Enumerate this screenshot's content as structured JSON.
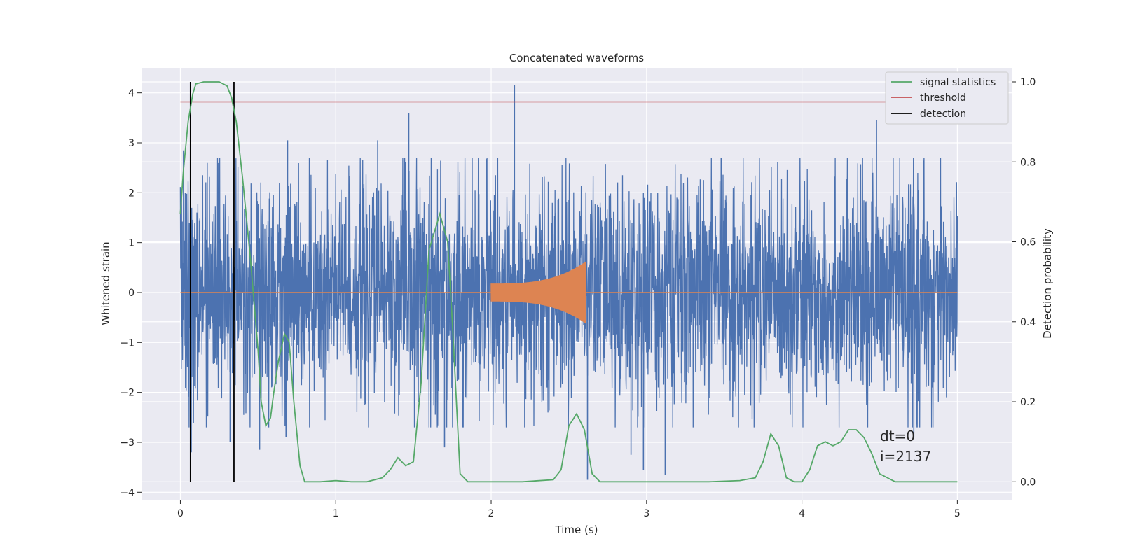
{
  "chart_data": {
    "type": "line",
    "title": "Concatenated waveforms",
    "xlabel": "Time (s)",
    "ylabel": "Whitened strain",
    "ylabel_right": "Detection probability",
    "xlim": [
      -0.25,
      5.35
    ],
    "ylim": [
      -4.15,
      4.5
    ],
    "ylim_right": [
      -0.045,
      1.035
    ],
    "xticks": [
      0,
      1,
      2,
      3,
      4,
      5
    ],
    "yticks": [
      -4,
      -3,
      -2,
      -1,
      0,
      1,
      2,
      3,
      4
    ],
    "yticks_right": [
      0.0,
      0.2,
      0.4,
      0.6,
      0.8,
      1.0
    ],
    "xtick_labels": [
      "0",
      "1",
      "2",
      "3",
      "4",
      "5"
    ],
    "ytick_labels": [
      "−4",
      "−3",
      "−2",
      "−1",
      "0",
      "1",
      "2",
      "3",
      "4"
    ],
    "ytick_right_labels": [
      "0.0",
      "0.2",
      "0.4",
      "0.6",
      "0.8",
      "1.0"
    ],
    "grid": true,
    "legend_position": "top-right",
    "legend": [
      {
        "label": "signal statistics",
        "color": "#55a868"
      },
      {
        "label": "threshold",
        "color": "#c44e52"
      },
      {
        "label": "detection",
        "color": "#000000"
      }
    ],
    "series": [
      {
        "role": "whitened strain noise",
        "color": "#4c72b0",
        "x_range": [
          0,
          5
        ],
        "typical_envelope": [
          -1.9,
          1.9
        ],
        "peaks": [
          {
            "x": 0.02,
            "y": 2.85
          },
          {
            "x": 0.07,
            "y": -3.2
          },
          {
            "x": 0.32,
            "y": -3.0
          },
          {
            "x": 0.51,
            "y": -3.15
          },
          {
            "x": 0.68,
            "y": -2.9
          },
          {
            "x": 0.69,
            "y": 3.05
          },
          {
            "x": 1.27,
            "y": 3.05
          },
          {
            "x": 1.47,
            "y": 3.6
          },
          {
            "x": 1.7,
            "y": -3.1
          },
          {
            "x": 2.15,
            "y": 4.15
          },
          {
            "x": 2.62,
            "y": -3.75
          },
          {
            "x": 2.9,
            "y": -3.25
          },
          {
            "x": 2.98,
            "y": -3.55
          },
          {
            "x": 3.12,
            "y": -3.65
          },
          {
            "x": 4.48,
            "y": 3.45
          },
          {
            "x": 4.72,
            "y": -2.9
          }
        ]
      },
      {
        "role": "injected waveform",
        "color": "#dd8452",
        "chirp_start": 2.0,
        "chirp_end": 2.61,
        "amplitude_start": 0.18,
        "amplitude_end": 0.62
      },
      {
        "name": "signal statistics",
        "axis": "right",
        "color": "#55a868",
        "x": [
          0.0,
          0.02,
          0.05,
          0.08,
          0.1,
          0.15,
          0.2,
          0.25,
          0.3,
          0.33,
          0.36,
          0.4,
          0.45,
          0.5,
          0.52,
          0.55,
          0.58,
          0.6,
          0.63,
          0.67,
          0.7,
          0.73,
          0.77,
          0.8,
          0.85,
          0.9,
          1.0,
          1.1,
          1.2,
          1.3,
          1.35,
          1.4,
          1.45,
          1.5,
          1.55,
          1.6,
          1.67,
          1.72,
          1.75,
          1.8,
          1.85,
          1.9,
          2.0,
          2.2,
          2.4,
          2.45,
          2.5,
          2.55,
          2.6,
          2.65,
          2.7,
          2.8,
          3.0,
          3.2,
          3.4,
          3.6,
          3.7,
          3.75,
          3.8,
          3.85,
          3.9,
          3.95,
          4.0,
          4.05,
          4.1,
          4.15,
          4.2,
          4.25,
          4.3,
          4.35,
          4.4,
          4.45,
          4.5,
          4.6,
          4.8,
          5.0
        ],
        "y": [
          0.67,
          0.78,
          0.9,
          0.97,
          0.995,
          1.0,
          1.0,
          1.0,
          0.99,
          0.96,
          0.9,
          0.76,
          0.56,
          0.33,
          0.2,
          0.14,
          0.16,
          0.22,
          0.3,
          0.37,
          0.35,
          0.2,
          0.04,
          0.0,
          0.0,
          0.0,
          0.003,
          0.0,
          0.0,
          0.01,
          0.03,
          0.06,
          0.04,
          0.05,
          0.25,
          0.58,
          0.67,
          0.6,
          0.4,
          0.02,
          0.0,
          0.0,
          0.0,
          0.0,
          0.005,
          0.03,
          0.14,
          0.17,
          0.13,
          0.02,
          0.0,
          0.0,
          0.0,
          0.0,
          0.0,
          0.003,
          0.01,
          0.05,
          0.12,
          0.09,
          0.01,
          0.0,
          0.0,
          0.03,
          0.09,
          0.1,
          0.09,
          0.1,
          0.13,
          0.13,
          0.11,
          0.07,
          0.02,
          0.0,
          0.0,
          0.0
        ]
      }
    ],
    "threshold": {
      "axis": "right",
      "value": 0.95,
      "x_range": [
        0,
        5
      ],
      "color": "#c44e52"
    },
    "detections": {
      "x": [
        0.065,
        0.345
      ],
      "color": "#000000"
    },
    "annotation": {
      "line1": "dt=0",
      "line2": "i=2137"
    }
  }
}
